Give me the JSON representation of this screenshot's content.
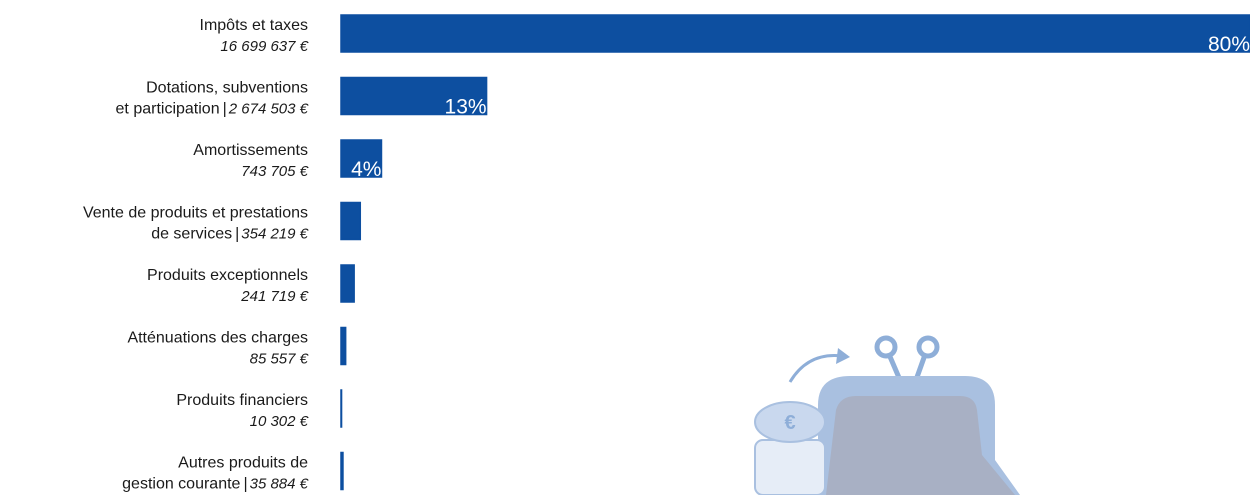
{
  "chart_data": {
    "type": "bar",
    "orientation": "horizontal",
    "color": "#0d4fa0",
    "categories": [
      [
        "Impôts et taxes"
      ],
      [
        "Dotations, subventions",
        "et participation"
      ],
      [
        "Amortissements"
      ],
      [
        "Vente de produits et prestations",
        "de services"
      ],
      [
        "Produits exceptionnels"
      ],
      [
        "Atténuations des charges"
      ],
      [
        "Produits financiers"
      ],
      [
        "Autres produits de",
        "gestion courante"
      ]
    ],
    "values": [
      16699637,
      2674503,
      743705,
      354219,
      241719,
      85557,
      10302,
      35884
    ],
    "value_labels": [
      "16 699 637 €",
      "2 674 503 €",
      "743 705 €",
      "354 219 €",
      "241 719 €",
      "85 557 €",
      "10 302 €",
      "35 884 €"
    ],
    "shares": {
      "values": [
        80,
        13,
        4,
        null,
        null,
        null,
        null,
        null
      ],
      "value_labels": [
        "80%",
        "13%",
        "4%",
        null,
        null,
        null,
        null,
        null
      ]
    }
  }
}
